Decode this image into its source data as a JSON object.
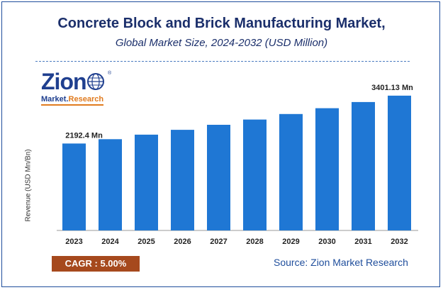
{
  "header": {
    "title": "Concrete Block and Brick Manufacturing Market,",
    "subtitle": "Global Market Size, 2024-2032 (USD Million)"
  },
  "logo": {
    "name": "Zion",
    "registered": "®",
    "sub_left": "Market.",
    "sub_right": "Research"
  },
  "footer": {
    "cagr": "CAGR :  5.00%",
    "source": "Source: Zion Market Research"
  },
  "colors": {
    "bar": "#1f77d4",
    "title": "#1b2f6b",
    "cagr_bg": "#a6491d"
  },
  "chart_data": {
    "type": "bar",
    "categories": [
      "2023",
      "2024",
      "2025",
      "2026",
      "2027",
      "2028",
      "2029",
      "2030",
      "2031",
      "2032"
    ],
    "values": [
      2192.4,
      2302.0,
      2417.1,
      2538.0,
      2664.9,
      2798.1,
      2938.0,
      3084.9,
      3239.2,
      3401.13
    ],
    "data_labels": [
      {
        "index": 0,
        "text": "2192.4 Mn"
      },
      {
        "index": 9,
        "text": "3401.13 Mn"
      }
    ],
    "title": "Concrete Block and Brick Manufacturing Market,",
    "subtitle": "Global Market Size, 2024-2032 (USD Million)",
    "xlabel": "",
    "ylabel": "Revenue (USD Mn/Bn)",
    "grid": false,
    "legend": "none"
  }
}
